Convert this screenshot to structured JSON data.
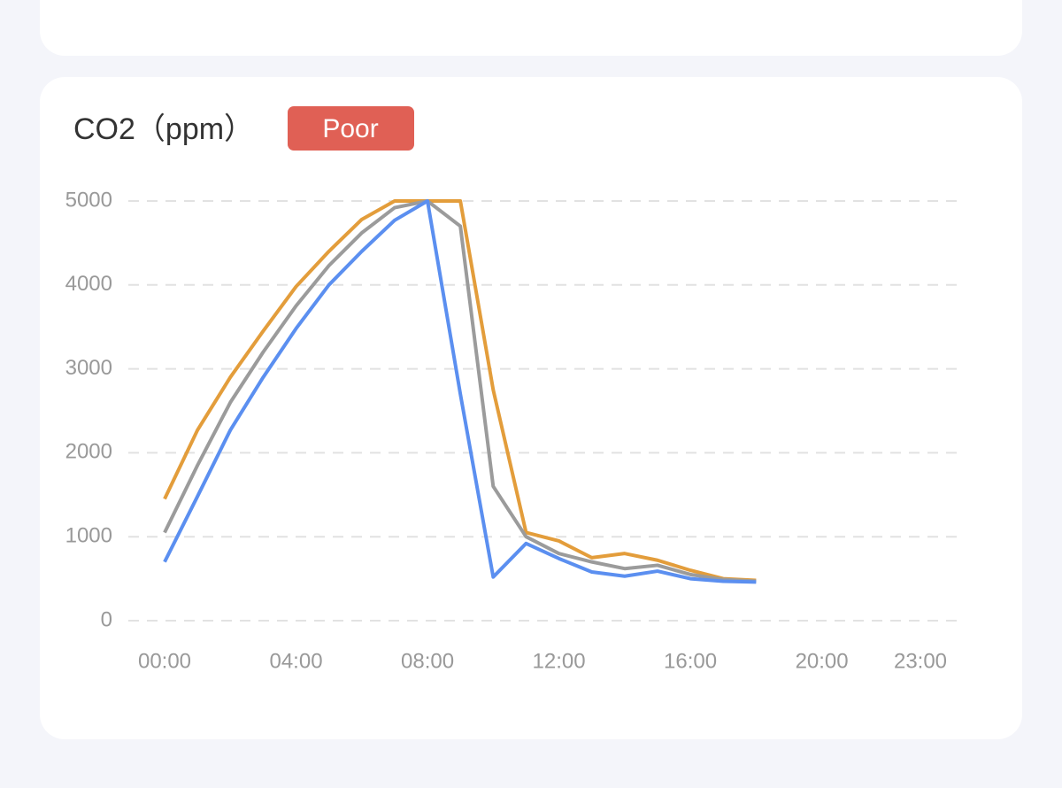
{
  "chart_data": {
    "type": "line",
    "title": "CO2（ppm）",
    "status": "Poor",
    "categories": [
      "00:00",
      null,
      null,
      null,
      "04:00",
      null,
      null,
      null,
      "08:00",
      null,
      null,
      null,
      "12:00",
      null,
      null,
      null,
      "16:00",
      null,
      null,
      null,
      "20:00",
      null,
      null,
      "23:00"
    ],
    "series": [
      {
        "color": "#e39d3b",
        "values": [
          1450,
          2270,
          2900,
          3450,
          3980,
          4400,
          4780,
          5000,
          5000,
          5000,
          2750,
          1050,
          950,
          750,
          800,
          720,
          600,
          500,
          480,
          null,
          null,
          null,
          null,
          null
        ]
      },
      {
        "color": "#9b9b9b",
        "values": [
          1050,
          1850,
          2600,
          3200,
          3750,
          4230,
          4620,
          4920,
          5000,
          4700,
          1600,
          1000,
          800,
          700,
          620,
          660,
          550,
          490,
          470,
          null,
          null,
          null,
          null,
          null
        ]
      },
      {
        "color": "#5b8ff0",
        "values": [
          700,
          1480,
          2270,
          2900,
          3480,
          4000,
          4400,
          4770,
          5000,
          2700,
          520,
          920,
          740,
          580,
          530,
          590,
          500,
          470,
          460,
          null,
          null,
          null,
          null,
          null
        ]
      }
    ],
    "ylim": [
      0,
      5000
    ],
    "yticks": [
      0,
      1000,
      2000,
      3000,
      4000,
      5000
    ],
    "grid": true
  }
}
